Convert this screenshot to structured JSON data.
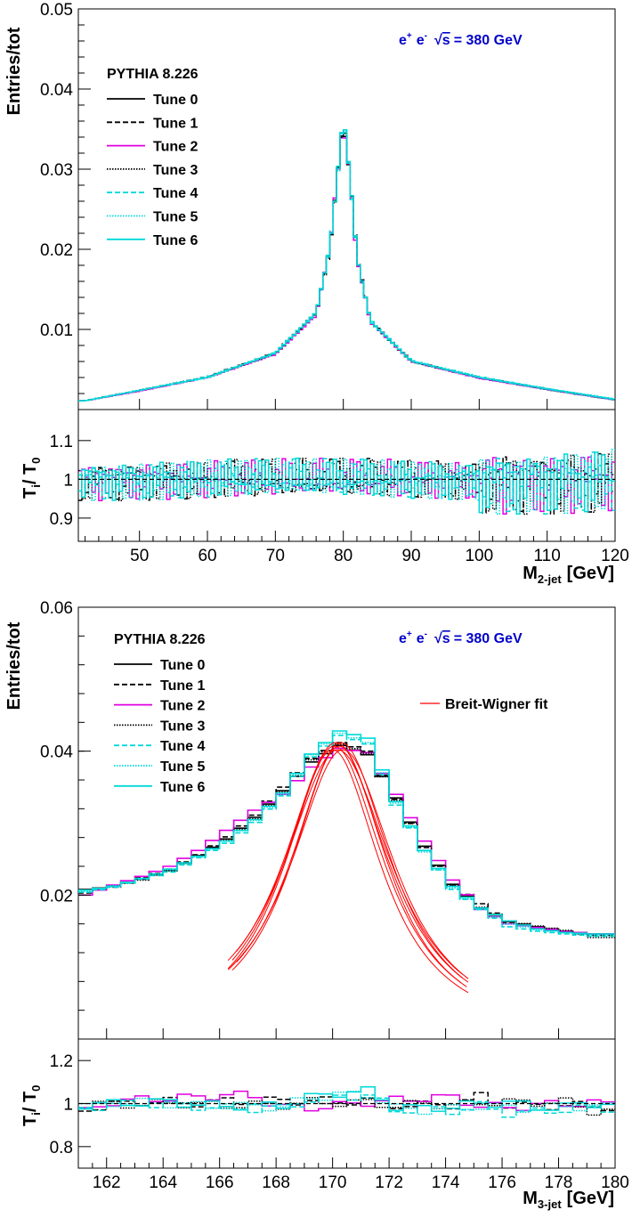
{
  "chart_data": [
    {
      "type": "line",
      "ylabel": "Entries/tot",
      "xlabel_main": "M",
      "xlabel_sub": "2-jet",
      "xlabel_unit": "[GeV]",
      "ratio_ylabel_main": "T",
      "ratio_ylabel_sub_i": "i",
      "ratio_ylabel_sep": "/ T",
      "ratio_ylabel_sub_0": "0",
      "annotation": {
        "prefix": "e",
        "sup1": "+",
        "mid": "e",
        "sup2": "-",
        "sqrt": "√",
        "s": "s",
        "rest": "= 380 GeV"
      },
      "legend_title": "PYTHIA 8.226",
      "xlim": [
        41,
        120
      ],
      "ylim": [
        0,
        0.05
      ],
      "ratio_ylim": [
        0.84,
        1.18
      ],
      "x_ticks": [
        50,
        60,
        70,
        80,
        90,
        100,
        110,
        120
      ],
      "y_ticks": [
        0.01,
        0.02,
        0.03,
        0.04,
        0.05
      ],
      "y_tick_labels": [
        "0.01",
        "0.02",
        "0.03",
        "0.04",
        "0.05"
      ],
      "ratio_ticks": [
        0.9,
        1,
        1.1
      ],
      "ratio_tick_labels": [
        "0.9",
        "1",
        "1.1"
      ],
      "peak": {
        "mass": 80.0,
        "height": 0.0365,
        "width": 1.6
      },
      "x": [
        42,
        50,
        60,
        70,
        76,
        78,
        79,
        80,
        81,
        82,
        84,
        90,
        100,
        110,
        120
      ],
      "series": [
        {
          "name": "Tune 0",
          "values": [
            0.0011,
            0.0024,
            0.004,
            0.007,
            0.012,
            0.02,
            0.028,
            0.0362,
            0.029,
            0.019,
            0.011,
            0.006,
            0.004,
            0.0025,
            0.0012
          ]
        },
        {
          "name": "Tune 1",
          "values": [
            0.0011,
            0.0024,
            0.0041,
            0.0071,
            0.0121,
            0.0198,
            0.0279,
            0.036,
            0.0292,
            0.0192,
            0.0111,
            0.0061,
            0.004,
            0.0026,
            0.0012
          ]
        },
        {
          "name": "Tune 2",
          "values": [
            0.0011,
            0.0023,
            0.004,
            0.0069,
            0.0118,
            0.0202,
            0.0282,
            0.0358,
            0.0288,
            0.0188,
            0.0109,
            0.006,
            0.0039,
            0.0025,
            0.0012
          ]
        },
        {
          "name": "Tune 3",
          "values": [
            0.0011,
            0.0024,
            0.004,
            0.007,
            0.012,
            0.0199,
            0.0281,
            0.0363,
            0.0291,
            0.0191,
            0.011,
            0.006,
            0.004,
            0.0025,
            0.0012
          ]
        },
        {
          "name": "Tune 4",
          "values": [
            0.0011,
            0.0024,
            0.0041,
            0.007,
            0.0121,
            0.0201,
            0.028,
            0.0366,
            0.0289,
            0.019,
            0.0111,
            0.0061,
            0.0041,
            0.0026,
            0.0013
          ]
        },
        {
          "name": "Tune 5",
          "values": [
            0.0011,
            0.0024,
            0.004,
            0.007,
            0.012,
            0.02,
            0.0279,
            0.0364,
            0.029,
            0.0189,
            0.011,
            0.006,
            0.004,
            0.0025,
            0.0012
          ]
        },
        {
          "name": "Tune 6",
          "values": [
            0.0011,
            0.0024,
            0.004,
            0.0071,
            0.0121,
            0.0201,
            0.0281,
            0.0367,
            0.0291,
            0.0191,
            0.011,
            0.0061,
            0.004,
            0.0026,
            0.0013
          ]
        }
      ]
    },
    {
      "type": "line",
      "ylabel": "Entries/tot",
      "xlabel_main": "M",
      "xlabel_sub": "3-jet",
      "xlabel_unit": "[GeV]",
      "ratio_ylabel_main": "T",
      "ratio_ylabel_sub_i": "i",
      "ratio_ylabel_sep": "/ T",
      "ratio_ylabel_sub_0": "0",
      "annotation": {
        "prefix": "e",
        "sup1": "+",
        "mid": "e",
        "sup2": "-",
        "sqrt": "√",
        "s": "s",
        "rest": "= 380 GeV"
      },
      "legend_title": "PYTHIA 8.226",
      "fit_label": "Breit-Wigner fit",
      "xlim": [
        161,
        180
      ],
      "ylim": [
        0,
        0.06
      ],
      "ratio_ylim": [
        0.7,
        1.3
      ],
      "x_ticks": [
        162,
        164,
        166,
        168,
        170,
        172,
        174,
        176,
        178,
        180
      ],
      "y_ticks": [
        0.02,
        0.04,
        0.06
      ],
      "y_tick_labels": [
        "0.02",
        "0.04",
        "0.06"
      ],
      "ratio_ticks": [
        0.8,
        1,
        1.2
      ],
      "ratio_tick_labels": [
        "0.8",
        "1",
        "1.2"
      ],
      "x": [
        161.25,
        162.25,
        163.25,
        164.25,
        165.25,
        166.25,
        167.25,
        168.25,
        169.25,
        170.25,
        171.25,
        172.25,
        173.25,
        174.25,
        175.25,
        176.25,
        177.25,
        178.25,
        179.25
      ],
      "series": [
        {
          "name": "Tune 0",
          "values": [
            0.0208,
            0.0212,
            0.0222,
            0.0234,
            0.0255,
            0.0278,
            0.0308,
            0.0345,
            0.0385,
            0.0408,
            0.0395,
            0.0335,
            0.0268,
            0.0215,
            0.0182,
            0.0163,
            0.0156,
            0.015,
            0.0146
          ]
        },
        {
          "name": "Tune 1",
          "values": [
            0.0203,
            0.0211,
            0.0224,
            0.0236,
            0.0256,
            0.0281,
            0.0311,
            0.035,
            0.039,
            0.0412,
            0.04,
            0.0333,
            0.0266,
            0.0214,
            0.0188,
            0.0162,
            0.0154,
            0.0149,
            0.0144
          ]
        },
        {
          "name": "Tune 2",
          "values": [
            0.02,
            0.0214,
            0.0226,
            0.024,
            0.0262,
            0.029,
            0.0318,
            0.034,
            0.0378,
            0.0404,
            0.0398,
            0.034,
            0.0275,
            0.0221,
            0.018,
            0.016,
            0.0155,
            0.015,
            0.0146
          ]
        },
        {
          "name": "Tune 3",
          "values": [
            0.0206,
            0.0212,
            0.0221,
            0.0235,
            0.0254,
            0.0276,
            0.0306,
            0.0343,
            0.0388,
            0.041,
            0.0397,
            0.0332,
            0.0268,
            0.0213,
            0.0183,
            0.0164,
            0.0157,
            0.0151,
            0.0141
          ]
        },
        {
          "name": "Tune 4",
          "values": [
            0.0204,
            0.0211,
            0.0222,
            0.0232,
            0.0252,
            0.0272,
            0.0301,
            0.0338,
            0.0392,
            0.0422,
            0.041,
            0.0325,
            0.0262,
            0.0208,
            0.018,
            0.0156,
            0.015,
            0.0146,
            0.0143
          ]
        },
        {
          "name": "Tune 5",
          "values": [
            0.0205,
            0.0213,
            0.0223,
            0.0234,
            0.0253,
            0.0275,
            0.0304,
            0.034,
            0.0395,
            0.0425,
            0.0412,
            0.0328,
            0.026,
            0.021,
            0.018,
            0.016,
            0.0152,
            0.0148,
            0.0144
          ]
        },
        {
          "name": "Tune 6",
          "values": [
            0.0207,
            0.0212,
            0.0223,
            0.0236,
            0.0254,
            0.0275,
            0.0305,
            0.0342,
            0.0396,
            0.0428,
            0.0418,
            0.033,
            0.0262,
            0.0212,
            0.0182,
            0.0164,
            0.0153,
            0.0148,
            0.0146
          ]
        }
      ],
      "fit": {
        "mass": 170.2,
        "xrange": [
          166.3,
          174.8
        ]
      }
    }
  ],
  "legend": {
    "tunes": [
      {
        "name": "Tune 0",
        "color": "#000000",
        "dash": "none"
      },
      {
        "name": "Tune 1",
        "color": "#000000",
        "dash": "6,3"
      },
      {
        "name": "Tune 2",
        "color": "#e000e0",
        "dash": "none"
      },
      {
        "name": "Tune 3",
        "color": "#000000",
        "dash": "1.5,1.5"
      },
      {
        "name": "Tune 4",
        "color": "#00d8d8",
        "dash": "6,3"
      },
      {
        "name": "Tune 5",
        "color": "#00d8d8",
        "dash": "1.5,1.5"
      },
      {
        "name": "Tune 6",
        "color": "#00d8d8",
        "dash": "none"
      }
    ],
    "fit_color": "#ff0000"
  },
  "colors": {
    "annotation": "#0000cc",
    "axis": "#000000"
  }
}
